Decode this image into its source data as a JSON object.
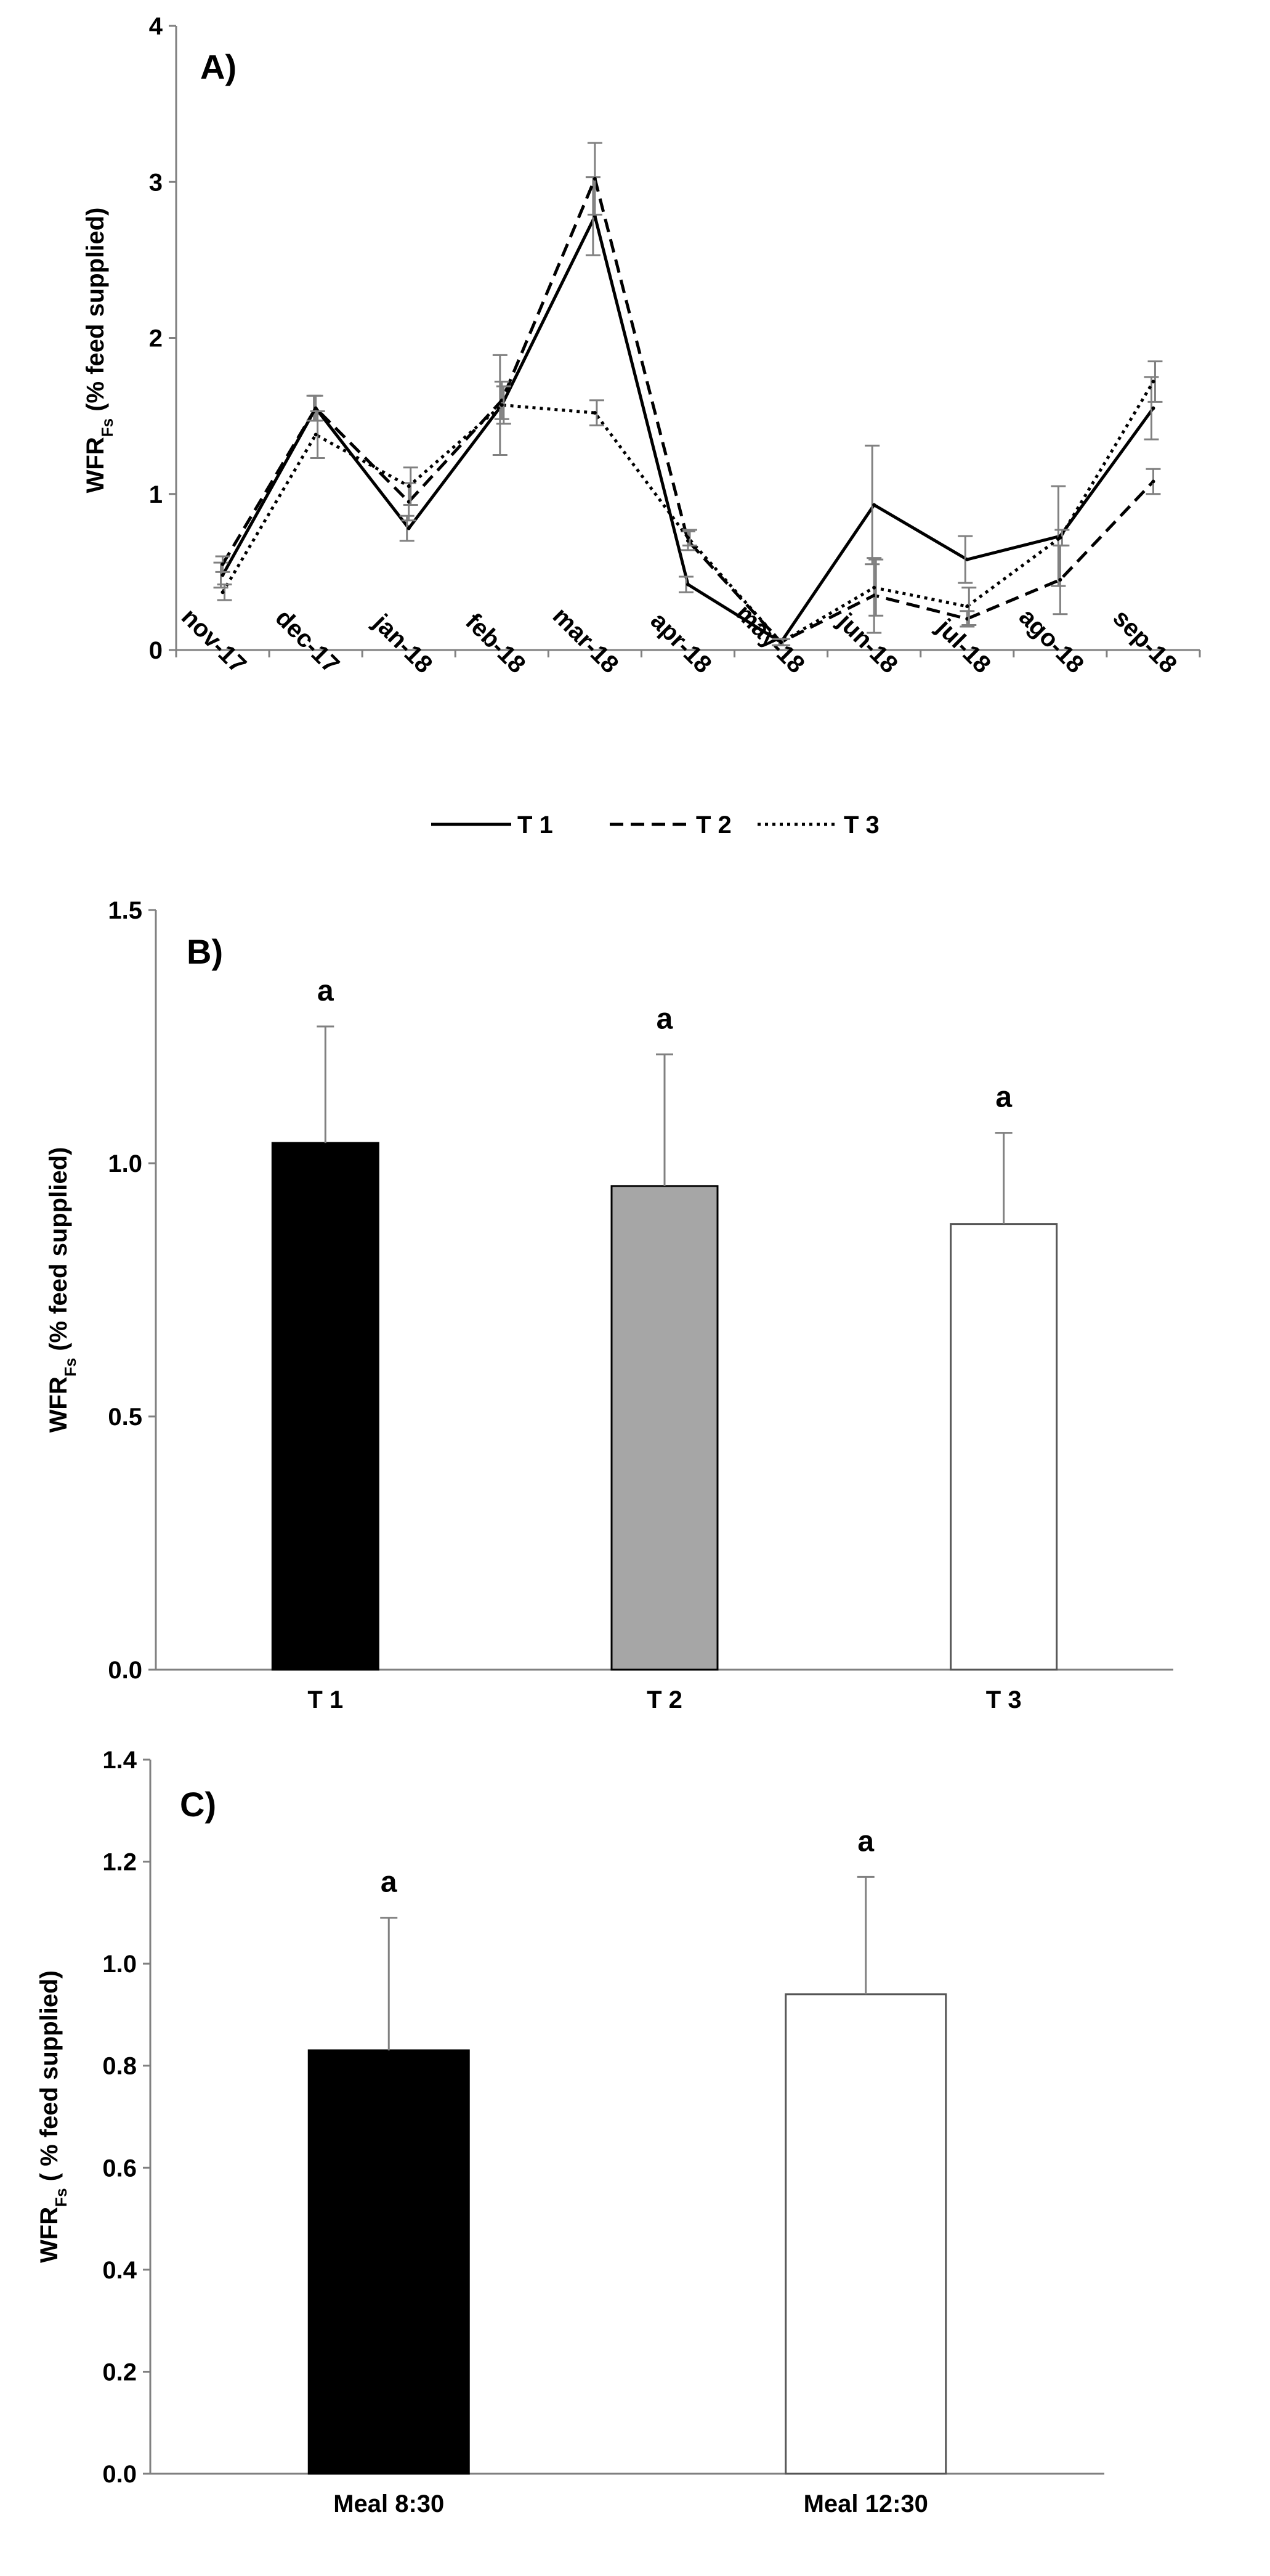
{
  "chart_data": [
    {
      "type": "line",
      "label": "A)",
      "ylabel": "WFR",
      "ylabel_sub": "Fs",
      "ylabel_suffix": " (% feed supplied)",
      "ylim": [
        0,
        4
      ],
      "yticks": [
        "0",
        "1",
        "2",
        "3",
        "4"
      ],
      "categories": [
        "nov-17",
        "dec-17",
        "jan-18",
        "feb-18",
        "mar-18",
        "apr-18",
        "may-18",
        "jun-18",
        "jul-18",
        "ago-18",
        "sep-18"
      ],
      "series": [
        {
          "name": "T 1",
          "style": "solid",
          "values": [
            0.48,
            1.55,
            0.78,
            1.57,
            2.78,
            0.42,
            0.05,
            0.93,
            0.58,
            0.73,
            1.55
          ],
          "errors": [
            0.08,
            0.08,
            0.08,
            0.32,
            0.25,
            0.05,
            0.02,
            0.38,
            0.15,
            0.32,
            0.2
          ]
        },
        {
          "name": "T 2",
          "style": "dashed",
          "values": [
            0.55,
            1.55,
            0.95,
            1.6,
            3.02,
            0.7,
            0.05,
            0.35,
            0.2,
            0.45,
            1.08
          ],
          "errors": [
            0.05,
            0.08,
            0.12,
            0.12,
            0.23,
            0.06,
            0.02,
            0.24,
            0.05,
            0.22,
            0.08
          ]
        },
        {
          "name": "T 3",
          "style": "dotted",
          "values": [
            0.37,
            1.38,
            1.05,
            1.57,
            1.52,
            0.72,
            0.05,
            0.4,
            0.28,
            0.72,
            1.72
          ],
          "errors": [
            0.05,
            0.15,
            0.12,
            0.12,
            0.08,
            0.05,
            0.02,
            0.18,
            0.12,
            0.05,
            0.13
          ]
        }
      ]
    },
    {
      "type": "bar",
      "label": "B)",
      "ylabel": "WFR",
      "ylabel_sub": "Fs",
      "ylabel_suffix": " (% feed supplied)",
      "ylim": [
        0,
        1.5
      ],
      "yticks": [
        "0.0",
        "0.5",
        "1.0",
        "1.5"
      ],
      "categories": [
        "T 1",
        "T 2",
        "T 3"
      ],
      "values": [
        1.04,
        0.955,
        0.88
      ],
      "errors": [
        0.23,
        0.26,
        0.18
      ],
      "annotations": [
        "a",
        "a",
        "a"
      ],
      "colors": [
        "#000000",
        "#a6a6a6",
        "#ffffff"
      ]
    },
    {
      "type": "bar",
      "label": "C)",
      "ylabel": "WFR",
      "ylabel_sub": "Fs",
      "ylabel_suffix": " ( % feed supplied)",
      "ylim": [
        0,
        1.4
      ],
      "yticks": [
        "0.0",
        "0.2",
        "0.4",
        "0.6",
        "0.8",
        "1.0",
        "1.2",
        "1.4"
      ],
      "categories": [
        "Meal 8:30",
        "Meal 12:30"
      ],
      "values": [
        0.83,
        0.94
      ],
      "errors": [
        0.26,
        0.23
      ],
      "annotations": [
        "a",
        "a"
      ],
      "colors": [
        "#000000",
        "#ffffff"
      ]
    }
  ]
}
